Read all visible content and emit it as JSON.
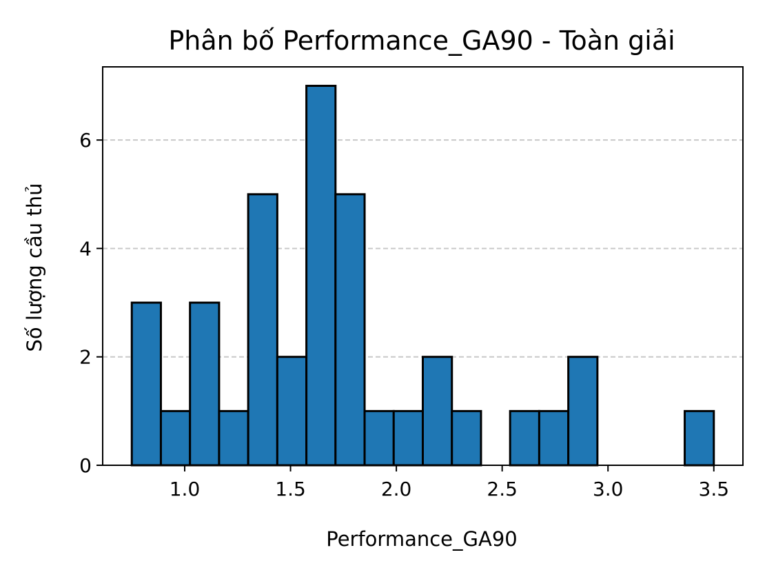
{
  "chart_data": {
    "type": "bar",
    "title": "Phân bố Performance_GA90 - Toàn giải",
    "xlabel": "Performance_GA90",
    "ylabel": "Số lượng cầu thủ",
    "bin_edges": [
      0.75,
      0.8875,
      1.025,
      1.1625,
      1.3,
      1.4375,
      1.575,
      1.7125,
      1.85,
      1.9875,
      2.125,
      2.2625,
      2.4,
      2.5375,
      2.675,
      2.8125,
      2.95,
      3.0875,
      3.225,
      3.3625,
      3.5
    ],
    "values": [
      3,
      1,
      3,
      1,
      5,
      2,
      7,
      5,
      1,
      1,
      2,
      1,
      0,
      1,
      1,
      2,
      0,
      0,
      0,
      1
    ],
    "xlim": [
      0.6125,
      3.6375
    ],
    "ylim": [
      0,
      7.35
    ],
    "xticks": [
      "1.0",
      "1.5",
      "2.0",
      "2.5",
      "3.0",
      "3.5"
    ],
    "yticks": [
      "0",
      "2",
      "4",
      "6"
    ],
    "grid": "y-dashed",
    "bar_color": "#1f77b4",
    "edge_color": "#000000",
    "grid_color": "#c8c8c8"
  }
}
